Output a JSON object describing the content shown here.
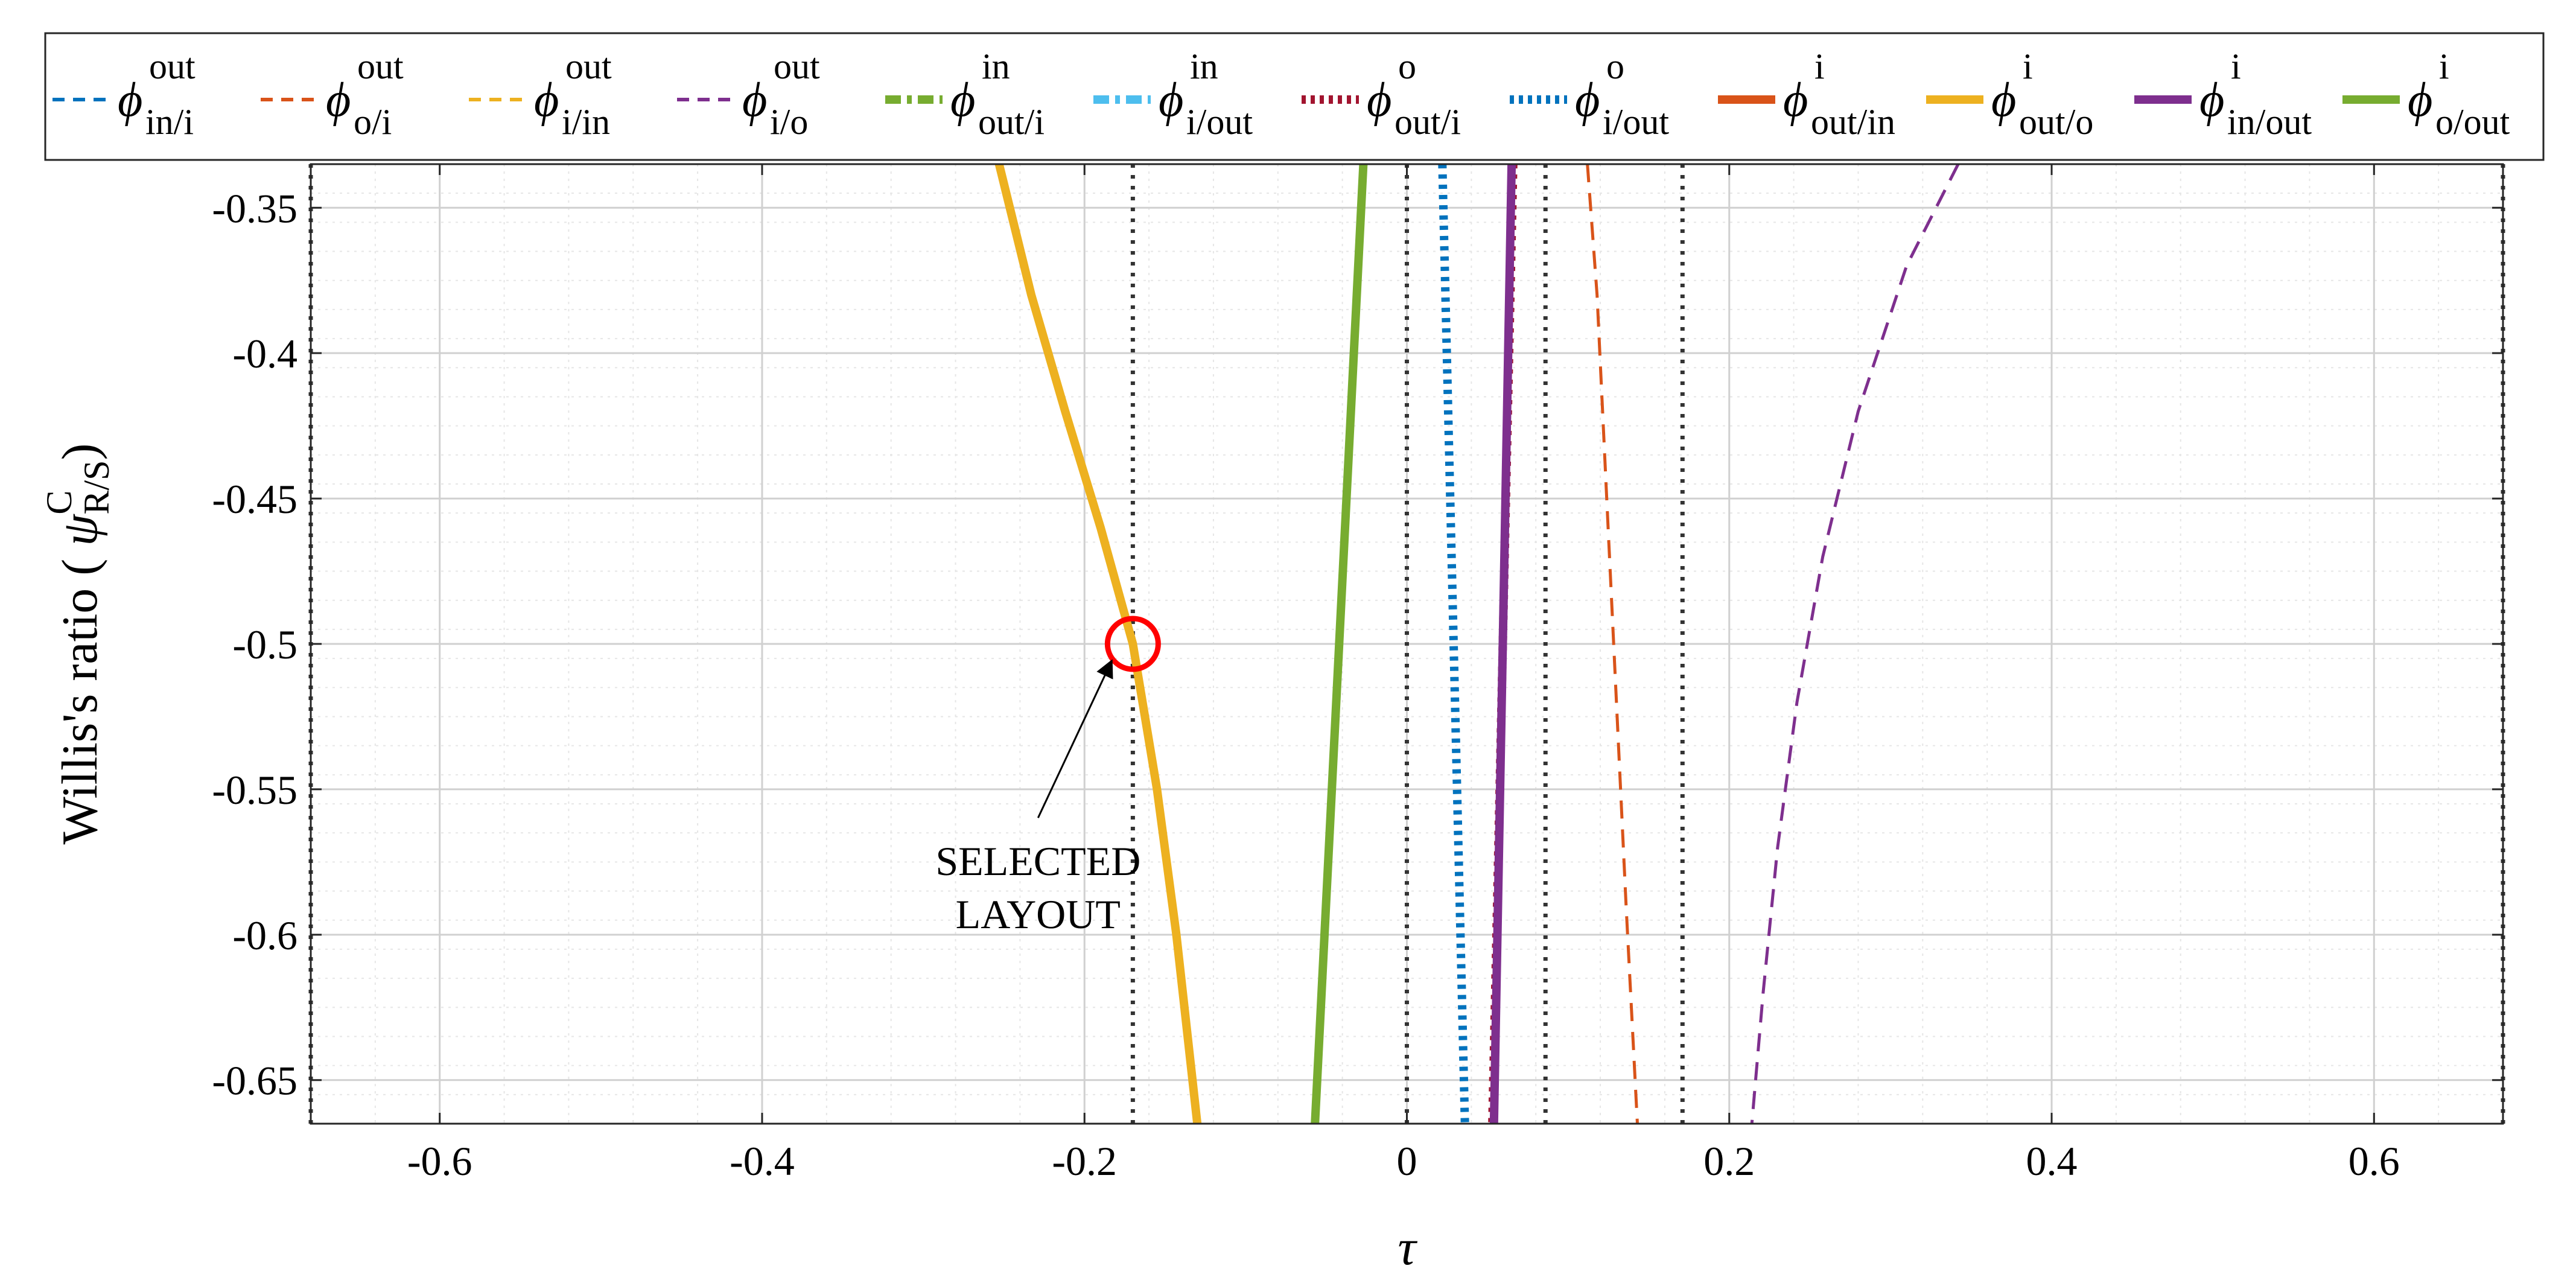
{
  "chart_data": {
    "type": "line",
    "xlabel": "τ",
    "ylabel": {
      "prefix": "Willis's ratio ( ",
      "symbol": "ψ",
      "superscript": "C",
      "subscript": "R/S",
      "suffix": ")"
    },
    "xlim": [
      -0.68,
      0.68
    ],
    "ylim": [
      -0.665,
      -0.335
    ],
    "x_ticks": [
      -0.6,
      -0.4,
      -0.2,
      0,
      0.2,
      0.4,
      0.6
    ],
    "x_tick_labels": [
      "-0.6",
      "-0.4",
      "-0.2",
      "0",
      "0.2",
      "0.4",
      "0.6"
    ],
    "y_ticks": [
      -0.35,
      -0.4,
      -0.45,
      -0.5,
      -0.55,
      -0.6,
      -0.65
    ],
    "y_tick_labels": [
      "-0.35",
      "-0.4",
      "-0.45",
      "-0.5",
      "-0.55",
      "-0.6",
      "-0.65"
    ],
    "grid": true,
    "minor_grid": true,
    "legend_placement": "top (outside)",
    "vertical_reference_lines": [
      -0.68,
      -0.17,
      0.0,
      0.086,
      0.171,
      0.68
    ],
    "series": [
      {
        "name": "in/i",
        "superscript": "out",
        "subscript": "in/i",
        "color": "#0072BD",
        "style": "dashed",
        "width": "thin",
        "points": []
      },
      {
        "name": "o/i",
        "superscript": "out",
        "subscript": "o/i",
        "color": "#D95319",
        "style": "dashed",
        "width": "thin",
        "points": [
          [
            0.112,
            -0.335
          ],
          [
            0.118,
            -0.38
          ],
          [
            0.124,
            -0.45
          ],
          [
            0.13,
            -0.52
          ],
          [
            0.136,
            -0.59
          ],
          [
            0.143,
            -0.665
          ]
        ]
      },
      {
        "name": "i/in",
        "superscript": "out",
        "subscript": "i/in",
        "color": "#EDB120",
        "style": "dashed",
        "width": "thin",
        "points": []
      },
      {
        "name": "i/o",
        "superscript": "out",
        "subscript": "i/o",
        "color": "#7E2F8E",
        "style": "dashed",
        "width": "thin",
        "points": [
          [
            0.342,
            -0.335
          ],
          [
            0.31,
            -0.37
          ],
          [
            0.28,
            -0.42
          ],
          [
            0.258,
            -0.47
          ],
          [
            0.242,
            -0.52
          ],
          [
            0.23,
            -0.57
          ],
          [
            0.221,
            -0.62
          ],
          [
            0.214,
            -0.665
          ]
        ]
      },
      {
        "name": "out/i",
        "superscript": "in",
        "subscript": "out/i",
        "color": "#77AC30",
        "style": "dashdot",
        "width": "thick",
        "points": []
      },
      {
        "name": "i/out",
        "superscript": "in",
        "subscript": "i/out",
        "color": "#4DBEEE",
        "style": "dashdot",
        "width": "thick",
        "points": []
      },
      {
        "name": "out/i",
        "superscript": "o",
        "subscript": "out/i",
        "color": "#A2142F",
        "style": "dotted",
        "width": "thick",
        "points": [
          [
            0.066,
            -0.335
          ],
          [
            0.053,
            -0.665
          ]
        ]
      },
      {
        "name": "i/out",
        "superscript": "o",
        "subscript": "i/out",
        "color": "#0072BD",
        "style": "dotted",
        "width": "thick",
        "points": [
          [
            0.022,
            -0.335
          ],
          [
            0.036,
            -0.665
          ]
        ]
      },
      {
        "name": "out/in",
        "superscript": "i",
        "subscript": "out/in",
        "color": "#D95319",
        "style": "solid",
        "width": "thick",
        "points": []
      },
      {
        "name": "out/o",
        "superscript": "i",
        "subscript": "out/o",
        "color": "#EDB120",
        "style": "solid",
        "width": "thick",
        "points": [
          [
            -0.253,
            -0.335
          ],
          [
            -0.233,
            -0.38
          ],
          [
            -0.212,
            -0.42
          ],
          [
            -0.19,
            -0.46
          ],
          [
            -0.17,
            -0.5
          ],
          [
            -0.155,
            -0.55
          ],
          [
            -0.143,
            -0.6
          ],
          [
            -0.13,
            -0.665
          ]
        ]
      },
      {
        "name": "in/out",
        "superscript": "i",
        "subscript": "in/out",
        "color": "#7E2F8E",
        "style": "solid",
        "width": "thick",
        "points": [
          [
            0.065,
            -0.335
          ],
          [
            0.054,
            -0.665
          ]
        ]
      },
      {
        "name": "o/out",
        "superscript": "i",
        "subscript": "o/out",
        "color": "#77AC30",
        "style": "solid",
        "width": "thick",
        "points": [
          [
            -0.027,
            -0.335
          ],
          [
            -0.042,
            -0.5
          ],
          [
            -0.057,
            -0.665
          ]
        ]
      }
    ],
    "legend_symbol": "ϕ",
    "annotations": [
      {
        "text_lines": [
          "SELECTED",
          "LAYOUT"
        ],
        "marker": "circle",
        "marker_color": "#FF0000",
        "point": [
          -0.17,
          -0.5
        ],
        "text_anchor_point": [
          -0.255,
          -0.565
        ]
      }
    ]
  }
}
